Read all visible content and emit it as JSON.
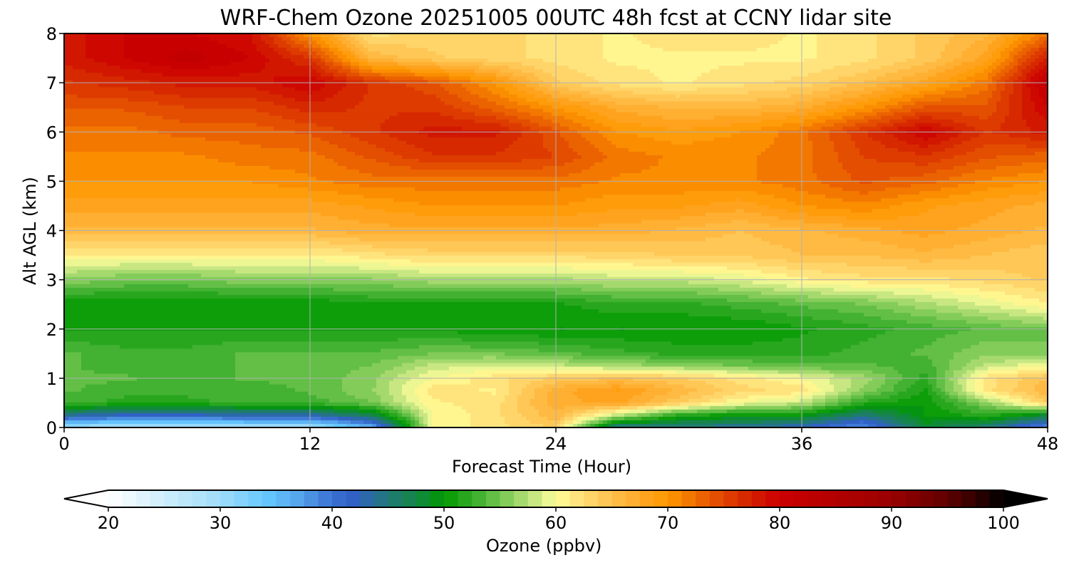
{
  "chart_data": {
    "type": "heatmap",
    "title": "WRF-Chem Ozone  20251005 00UTC 48h fcst at CCNY lidar site",
    "xlabel": "Forecast Time (Hour)",
    "ylabel": "Alt AGL (km)",
    "xlim": [
      0,
      48
    ],
    "ylim": [
      0,
      8
    ],
    "xticks": [
      0,
      12,
      24,
      36,
      48
    ],
    "yticks": [
      0,
      1,
      2,
      3,
      4,
      5,
      6,
      7,
      8
    ],
    "grid": true,
    "colorbar": {
      "label": "Ozone  (ppbv)",
      "range": [
        20,
        100
      ],
      "ticks": [
        20,
        30,
        40,
        50,
        60,
        70,
        80,
        90,
        100
      ],
      "step": 1.25,
      "extend": "both",
      "placement": "bottom",
      "colors": [
        [
          20,
          "#ffffff"
        ],
        [
          25,
          "#cdeefc"
        ],
        [
          30,
          "#a0dcfa"
        ],
        [
          34,
          "#66c8ff"
        ],
        [
          37,
          "#55a4ec"
        ],
        [
          40,
          "#3a72d2"
        ],
        [
          42,
          "#3060c4"
        ],
        [
          45,
          "#227878"
        ],
        [
          48,
          "#108a38"
        ],
        [
          50,
          "#009900"
        ],
        [
          53,
          "#40b030"
        ],
        [
          56,
          "#8cd060"
        ],
        [
          59,
          "#e0f090"
        ],
        [
          60,
          "#ffff99"
        ],
        [
          62,
          "#ffe27c"
        ],
        [
          65,
          "#ffc04c"
        ],
        [
          68,
          "#ffa420"
        ],
        [
          70,
          "#ff9900"
        ],
        [
          72,
          "#f27600"
        ],
        [
          75,
          "#e04400"
        ],
        [
          78,
          "#d21800"
        ],
        [
          80,
          "#cc0000"
        ],
        [
          90,
          "#990000"
        ],
        [
          95,
          "#600000"
        ],
        [
          100,
          "#000000"
        ]
      ]
    },
    "x": [
      0,
      3,
      6,
      9,
      12,
      15,
      18,
      21,
      24,
      27,
      30,
      33,
      36,
      39,
      42,
      45,
      48
    ],
    "altitudes": [
      0,
      0.25,
      0.5,
      0.75,
      1,
      1.25,
      1.5,
      2,
      2.5,
      3,
      3.5,
      4,
      4.5,
      5,
      5.5,
      6,
      6.5,
      7,
      7.5,
      8
    ],
    "values": [
      [
        30,
        28,
        28,
        29,
        29,
        36,
        60,
        62,
        64,
        44,
        44,
        44,
        42,
        38,
        48,
        45,
        38
      ],
      [
        44,
        42,
        42,
        43,
        43,
        47,
        60,
        62,
        66,
        58,
        52,
        50,
        50,
        45,
        50,
        52,
        48
      ],
      [
        53,
        52,
        52,
        53,
        53,
        55,
        61,
        62,
        67,
        68,
        64,
        60,
        58,
        52,
        50,
        56,
        64
      ],
      [
        54,
        53,
        53,
        53,
        54,
        56,
        62,
        61,
        67,
        69,
        66,
        63,
        62,
        56,
        51,
        62,
        66
      ],
      [
        54,
        54,
        53,
        54,
        54,
        56,
        60,
        62,
        64,
        65,
        64,
        62,
        60,
        57,
        52,
        62,
        65
      ],
      [
        54,
        53,
        53,
        54,
        54,
        55,
        58,
        59,
        58,
        57,
        56,
        55,
        54,
        54,
        53,
        58,
        60
      ],
      [
        54,
        53,
        53,
        54,
        54,
        54,
        55,
        55,
        54,
        53,
        52,
        52,
        52,
        53,
        54,
        56,
        55
      ],
      [
        51,
        51,
        51,
        51,
        51,
        51,
        51,
        50,
        50,
        50,
        50,
        50,
        51,
        52,
        53,
        54,
        55
      ],
      [
        50,
        50,
        50,
        50,
        50,
        51,
        51,
        51,
        51,
        52,
        52,
        53,
        54,
        55,
        57,
        59,
        61
      ],
      [
        56,
        55,
        55,
        56,
        56,
        56,
        57,
        57,
        57,
        58,
        58,
        59,
        61,
        62,
        62,
        63,
        64
      ],
      [
        61,
        61,
        61,
        61,
        61,
        62,
        63,
        63,
        63,
        63,
        64,
        64,
        65,
        65,
        66,
        65,
        64
      ],
      [
        66,
        66,
        66,
        66,
        66,
        67,
        67,
        67,
        67,
        67,
        66,
        65,
        66,
        67,
        68,
        67,
        66
      ],
      [
        68,
        68,
        68,
        68,
        68,
        69,
        70,
        70,
        70,
        69,
        69,
        68,
        70,
        71,
        69,
        68,
        67
      ],
      [
        70,
        70,
        70,
        70,
        71,
        72,
        72,
        72,
        72,
        71,
        71,
        71,
        72,
        74,
        73,
        71,
        70
      ],
      [
        71,
        71,
        71,
        72,
        72,
        74,
        76,
        76,
        75,
        72,
        71,
        71,
        72,
        75,
        76,
        74,
        73
      ],
      [
        72,
        72,
        73,
        73,
        74,
        76,
        78,
        78,
        74,
        70,
        69,
        70,
        72,
        76,
        80,
        76,
        78
      ],
      [
        74,
        74,
        75,
        75,
        77,
        76,
        76,
        73,
        70,
        67,
        66,
        66,
        67,
        70,
        74,
        74,
        80
      ],
      [
        76,
        77,
        78,
        78,
        80,
        76,
        74,
        70,
        64,
        62,
        61,
        62,
        63,
        65,
        68,
        72,
        82
      ],
      [
        78,
        80,
        82,
        80,
        76,
        66,
        64,
        63,
        62,
        61,
        61,
        61,
        61,
        62,
        64,
        68,
        78
      ],
      [
        78,
        80,
        80,
        79,
        70,
        62,
        63,
        63,
        62,
        61,
        62,
        62,
        61,
        62,
        64,
        66,
        72
      ]
    ]
  }
}
